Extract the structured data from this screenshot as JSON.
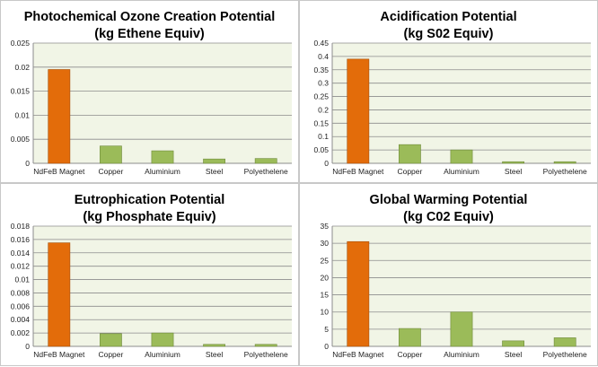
{
  "colors": {
    "highlight": "#e36c0a",
    "highlight_stroke": "#a64f09",
    "bar": "#9bbb59",
    "bar_stroke": "#6f8a3b",
    "plot_bg": "#f1f5e6",
    "grid": "#8c8c8c",
    "axis": "#8c8c8c"
  },
  "chart_data": [
    {
      "type": "bar",
      "title_line1": "Photochemical Ozone Creation Potential",
      "title_line2": "(kg Ethene Equiv)",
      "categories": [
        "NdFeB Magnet",
        "Copper",
        "Aluminium",
        "Steel",
        "Polyethelene"
      ],
      "values": [
        0.0195,
        0.0036,
        0.0026,
        0.0009,
        0.001
      ],
      "ylim": [
        0,
        0.025
      ],
      "yticks": [
        0,
        0.005,
        0.01,
        0.015,
        0.02,
        0.025
      ],
      "ytick_labels": [
        "0",
        "0.005",
        "0.01",
        "0.015",
        "0.02",
        "0.025"
      ],
      "grid": true,
      "highlight_index": 0
    },
    {
      "type": "bar",
      "title_line1": "Acidification Potential",
      "title_line2": "(kg S02 Equiv)",
      "categories": [
        "NdFeB Magnet",
        "Copper",
        "Aluminium",
        "Steel",
        "Polyethelene"
      ],
      "values": [
        0.39,
        0.07,
        0.05,
        0.006,
        0.006
      ],
      "ylim": [
        0,
        0.45
      ],
      "yticks": [
        0,
        0.05,
        0.1,
        0.15,
        0.2,
        0.25,
        0.3,
        0.35,
        0.4,
        0.45
      ],
      "ytick_labels": [
        "0",
        "0.05",
        "0.1",
        "0.15",
        "0.2",
        "0.25",
        "0.3",
        "0.35",
        "0.4",
        "0.45"
      ],
      "grid": true,
      "highlight_index": 0
    },
    {
      "type": "bar",
      "title_line1": "Eutrophication Potential",
      "title_line2": "(kg Phosphate Equiv)",
      "categories": [
        "NdFeB Magnet",
        "Copper",
        "Aluminium",
        "Steel",
        "Polyethelene"
      ],
      "values": [
        0.0155,
        0.0019,
        0.002,
        0.0003,
        0.0003
      ],
      "ylim": [
        0,
        0.018
      ],
      "yticks": [
        0,
        0.002,
        0.004,
        0.006,
        0.008,
        0.01,
        0.012,
        0.014,
        0.016,
        0.018
      ],
      "ytick_labels": [
        "0",
        "0.002",
        "0.004",
        "0.006",
        "0.008",
        "0.01",
        "0.012",
        "0.014",
        "0.016",
        "0.018"
      ],
      "grid": true,
      "highlight_index": 0
    },
    {
      "type": "bar",
      "title_line1": "Global Warming Potential",
      "title_line2": "(kg C02 Equiv)",
      "categories": [
        "NdFeB Magnet",
        "Copper",
        "Aluminium",
        "Steel",
        "Polyethelene"
      ],
      "values": [
        30.5,
        5.2,
        10,
        1.6,
        2.5
      ],
      "ylim": [
        0,
        35
      ],
      "yticks": [
        0,
        5,
        10,
        15,
        20,
        25,
        30,
        35
      ],
      "ytick_labels": [
        "0",
        "5",
        "10",
        "15",
        "20",
        "25",
        "30",
        "35"
      ],
      "grid": true,
      "highlight_index": 0
    }
  ]
}
